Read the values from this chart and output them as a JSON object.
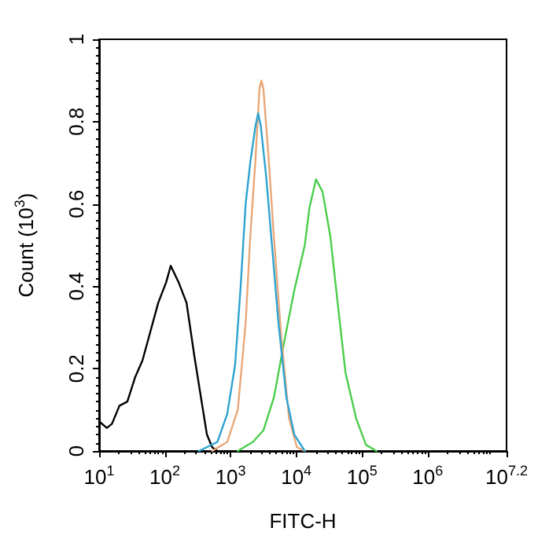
{
  "chart_data": {
    "type": "line",
    "xlabel": "FITC-H",
    "ylabel": "Count (10$^{3}$)",
    "log": "x",
    "grid": false,
    "marker": "none",
    "line_style": "solid",
    "xlim": [
      10,
      15848932
    ],
    "ylim": [
      0,
      1
    ],
    "xticks": [
      {
        "value": 10,
        "label": "10$^{1}$"
      },
      {
        "value": 100,
        "label": "10$^{2}$"
      },
      {
        "value": 1000,
        "label": "10$^{3}$"
      },
      {
        "value": 10000,
        "label": "10$^{4}$"
      },
      {
        "value": 100000,
        "label": "10$^{5}$"
      },
      {
        "value": 1000000,
        "label": "10$^{6}$"
      },
      {
        "value": 15848932,
        "label": "10$^{7.2}$"
      }
    ],
    "yticks": [
      0,
      0.2,
      0.4,
      0.6,
      0.8,
      1
    ],
    "series": [
      {
        "color": "#000000",
        "x": [
          10,
          13.1,
          15.7,
          20.4,
          26.9,
          35.5,
          45.7,
          60.3,
          79.4,
          105,
          123,
          162,
          214,
          282,
          363,
          437,
          525,
          631
        ],
        "values": [
          0.072,
          0.056,
          0.066,
          0.11,
          0.12,
          0.18,
          0.22,
          0.29,
          0.36,
          0.41,
          0.45,
          0.41,
          0.36,
          0.23,
          0.12,
          0.04,
          0.009,
          0
        ]
      },
      {
        "color": "#4ccd4c",
        "x": [
          1288,
          2188,
          3162,
          4571,
          6457,
          9333,
          13490,
          15850,
          19950,
          25120,
          33110,
          42660,
          56230,
          81280,
          114800,
          166000
        ],
        "values": [
          0,
          0.022,
          0.05,
          0.13,
          0.26,
          0.39,
          0.5,
          0.59,
          0.66,
          0.63,
          0.52,
          0.36,
          0.19,
          0.08,
          0.015,
          0
        ]
      },
      {
        "color": "#e8a878",
        "x": [
          525,
          891,
          1288,
          1698,
          1995,
          2399,
          2754,
          2951,
          3162,
          3802,
          4571,
          5888,
          7762,
          10230,
          13490
        ],
        "values": [
          0,
          0.022,
          0.1,
          0.31,
          0.52,
          0.71,
          0.88,
          0.9,
          0.88,
          0.71,
          0.52,
          0.28,
          0.08,
          0.009,
          0
        ]
      },
      {
        "color": "#2ea3d0",
        "x": [
          331,
          631,
          891,
          1175,
          1413,
          1698,
          1995,
          2399,
          2630,
          2884,
          3467,
          4169,
          5370,
          7079,
          9333,
          13490
        ],
        "values": [
          0,
          0.022,
          0.09,
          0.21,
          0.39,
          0.6,
          0.7,
          0.79,
          0.82,
          0.79,
          0.67,
          0.52,
          0.31,
          0.13,
          0.04,
          0
        ]
      }
    ]
  }
}
